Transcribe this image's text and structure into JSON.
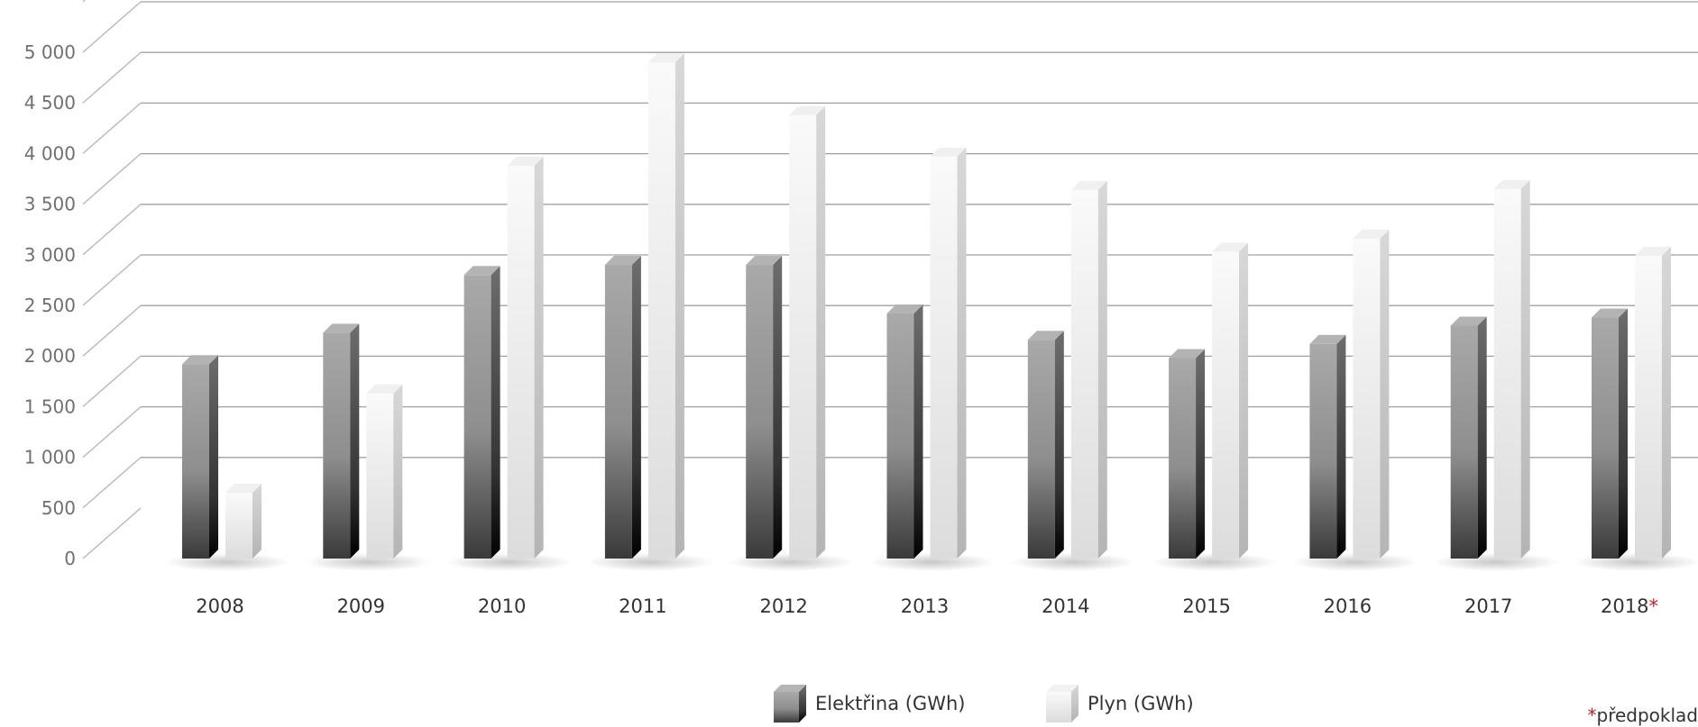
{
  "chart_data": {
    "type": "bar",
    "categories": [
      "2008",
      "2009",
      "2010",
      "2011",
      "2012",
      "2013",
      "2014",
      "2015",
      "2016",
      "2017",
      "2018"
    ],
    "category_suffix": {
      "2018": "*"
    },
    "series": [
      {
        "name": "Elektřina (GWh)",
        "values": [
          1920,
          2230,
          2800,
          2900,
          2900,
          2420,
          2160,
          1980,
          2120,
          2300,
          2380
        ]
      },
      {
        "name": "Plyn (GWh)",
        "values": [
          650,
          1630,
          3880,
          4900,
          4380,
          3970,
          3640,
          3030,
          3160,
          3650,
          2990
        ]
      }
    ],
    "yticks": [
      "0",
      "500",
      "1 000",
      "1 500",
      "2 000",
      "2 500",
      "3 000",
      "3 500",
      "4 000",
      "4 500",
      "5 000"
    ],
    "ylim": [
      0,
      5500
    ],
    "grid": true,
    "legend_position": "bottom-center",
    "colors": {
      "Elektřina (GWh)": "#8f8f8f",
      "Plyn (GWh)": "#eeeeee",
      "asterisk": "#d7191c"
    }
  },
  "footnote": {
    "mark": "*",
    "text": "předpoklad"
  }
}
